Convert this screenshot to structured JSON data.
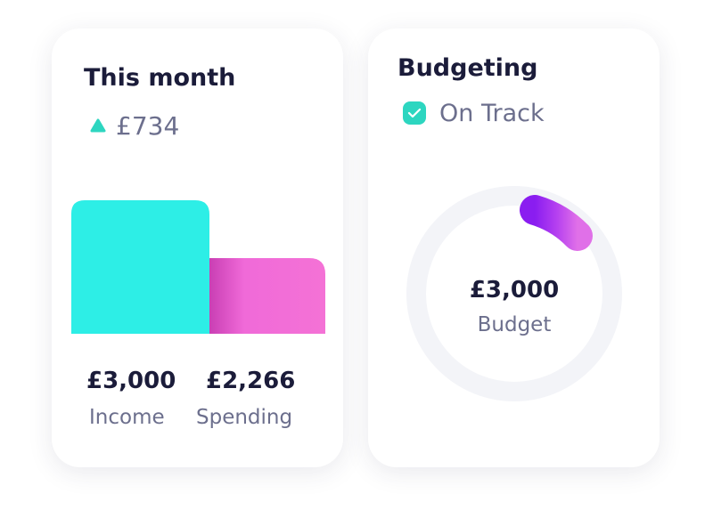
{
  "cards": [
    {
      "title": "This month",
      "change": "£734",
      "stats": [
        {
          "amount": "£3,000",
          "label": "Income"
        },
        {
          "amount": "£2,266",
          "label": "Spending"
        }
      ]
    },
    {
      "title": "Budgeting",
      "status": "On Track",
      "center": {
        "amount": "£3,000",
        "label": "Budget"
      }
    }
  ]
}
